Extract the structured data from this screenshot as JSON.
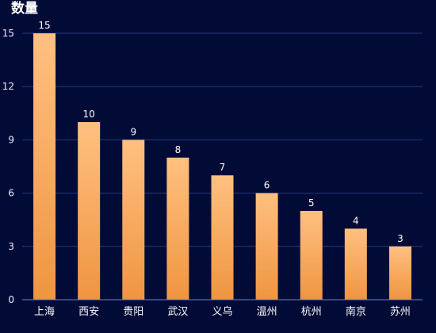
{
  "chart_data": {
    "type": "bar",
    "title": "",
    "ylabel": "数量",
    "xlabel": "",
    "categories": [
      "上海",
      "西安",
      "贵阳",
      "武汉",
      "义乌",
      "温州",
      "杭州",
      "南京",
      "苏州"
    ],
    "values": [
      15,
      10,
      9,
      8,
      7,
      6,
      5,
      4,
      3
    ],
    "ylim": [
      0,
      15
    ],
    "yticks": [
      0,
      3,
      6,
      9,
      12,
      15
    ],
    "grid": true,
    "data_labels": true,
    "colors": {
      "background": "#020b36",
      "bar_top": "#ffc080",
      "bar_bottom": "#ef9541",
      "grid": "#2a3a78",
      "axis": "#6e7fc8",
      "text": "#ffffff"
    }
  }
}
